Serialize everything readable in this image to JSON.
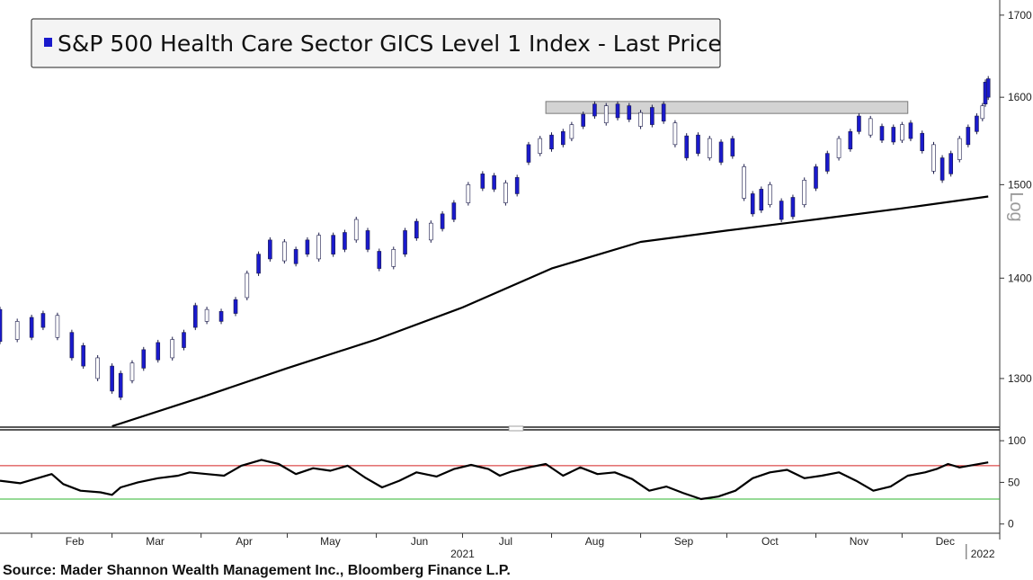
{
  "source": "Source: Mader Shannon Wealth Management Inc., Bloomberg Finance L.P.",
  "chart_data": [
    {
      "type": "candlestick",
      "title": "",
      "legend": [
        {
          "label": "S&P 500 Health Care Sector GICS Level 1 Index - Last Price",
          "color": "#1a1acc"
        }
      ],
      "scale": "log",
      "scale_label": "Log",
      "ylim": [
        1255,
        1710
      ],
      "yticks": [
        1300,
        1400,
        1500,
        1600,
        1700
      ],
      "xlim": [
        "2021-01-21",
        "2022-01-04"
      ],
      "x_month_ticks": [
        {
          "date": "2021-02-01",
          "label": "Feb"
        },
        {
          "date": "2021-03-01",
          "label": "Mar"
        },
        {
          "date": "2021-04-01",
          "label": "Apr"
        },
        {
          "date": "2021-05-01",
          "label": "May"
        },
        {
          "date": "2021-06-01",
          "label": "Jun"
        },
        {
          "date": "2021-07-01",
          "label": "Jul"
        },
        {
          "date": "2021-08-01",
          "label": "Aug"
        },
        {
          "date": "2021-09-01",
          "label": "Sep"
        },
        {
          "date": "2021-10-01",
          "label": "Oct"
        },
        {
          "date": "2021-11-01",
          "label": "Nov"
        },
        {
          "date": "2021-12-01",
          "label": "Dec"
        }
      ],
      "x_year_labels": [
        {
          "date": "2021-07-01",
          "label": "2021"
        },
        {
          "date": "2022-01-03",
          "label": "2022"
        }
      ],
      "resistance_zone": {
        "start": "2021-07-30",
        "end": "2021-12-03",
        "low": 1581,
        "high": 1595,
        "color": "#d3d3d3"
      },
      "series": [
        {
          "name": "Index",
          "style": "candles",
          "color": "#1a1acc",
          "points": [
            [
              "2021-01-21",
              1336,
              1368
            ],
            [
              "2021-01-27",
              1338,
              1356
            ],
            [
              "2021-02-01",
              1340,
              1360
            ],
            [
              "2021-02-05",
              1350,
              1364
            ],
            [
              "2021-02-10",
              1340,
              1362
            ],
            [
              "2021-02-15",
              1320,
              1345
            ],
            [
              "2021-02-19",
              1312,
              1332
            ],
            [
              "2021-02-24",
              1300,
              1320
            ],
            [
              "2021-03-01",
              1288,
              1312
            ],
            [
              "2021-03-04",
              1282,
              1305
            ],
            [
              "2021-03-08",
              1298,
              1315
            ],
            [
              "2021-03-12",
              1310,
              1328
            ],
            [
              "2021-03-17",
              1318,
              1335
            ],
            [
              "2021-03-22",
              1320,
              1338
            ],
            [
              "2021-03-26",
              1330,
              1345
            ],
            [
              "2021-03-30",
              1350,
              1372
            ],
            [
              "2021-04-03",
              1356,
              1368
            ],
            [
              "2021-04-08",
              1356,
              1366
            ],
            [
              "2021-04-13",
              1364,
              1378
            ],
            [
              "2021-04-17",
              1380,
              1405
            ],
            [
              "2021-04-21",
              1405,
              1425
            ],
            [
              "2021-04-25",
              1420,
              1440
            ],
            [
              "2021-04-30",
              1418,
              1438
            ],
            [
              "2021-05-04",
              1415,
              1430
            ],
            [
              "2021-05-08",
              1425,
              1440
            ],
            [
              "2021-05-12",
              1420,
              1445
            ],
            [
              "2021-05-17",
              1425,
              1445
            ],
            [
              "2021-05-21",
              1430,
              1448
            ],
            [
              "2021-05-25",
              1440,
              1462
            ],
            [
              "2021-05-29",
              1430,
              1450
            ],
            [
              "2021-06-02",
              1410,
              1428
            ],
            [
              "2021-06-07",
              1412,
              1430
            ],
            [
              "2021-06-11",
              1425,
              1450
            ],
            [
              "2021-06-15",
              1442,
              1460
            ],
            [
              "2021-06-20",
              1440,
              1458
            ],
            [
              "2021-06-24",
              1452,
              1468
            ],
            [
              "2021-06-28",
              1462,
              1480
            ],
            [
              "2021-07-03",
              1480,
              1500
            ],
            [
              "2021-07-08",
              1496,
              1512
            ],
            [
              "2021-07-12",
              1495,
              1510
            ],
            [
              "2021-07-16",
              1480,
              1502
            ],
            [
              "2021-07-20",
              1490,
              1508
            ],
            [
              "2021-07-24",
              1525,
              1545
            ],
            [
              "2021-07-28",
              1535,
              1552
            ],
            [
              "2021-08-01",
              1540,
              1556
            ],
            [
              "2021-08-05",
              1545,
              1560
            ],
            [
              "2021-08-08",
              1552,
              1568
            ],
            [
              "2021-08-12",
              1566,
              1580
            ],
            [
              "2021-08-16",
              1578,
              1592
            ],
            [
              "2021-08-20",
              1570,
              1590
            ],
            [
              "2021-08-24",
              1576,
              1592
            ],
            [
              "2021-08-28",
              1574,
              1590
            ],
            [
              "2021-09-01",
              1566,
              1582
            ],
            [
              "2021-09-05",
              1568,
              1588
            ],
            [
              "2021-09-09",
              1572,
              1592
            ],
            [
              "2021-09-13",
              1545,
              1570
            ],
            [
              "2021-09-17",
              1530,
              1555
            ],
            [
              "2021-09-21",
              1535,
              1556
            ],
            [
              "2021-09-25",
              1530,
              1552
            ],
            [
              "2021-09-29",
              1525,
              1548
            ],
            [
              "2021-10-03",
              1532,
              1552
            ],
            [
              "2021-10-07",
              1485,
              1520
            ],
            [
              "2021-10-10",
              1468,
              1490
            ],
            [
              "2021-10-13",
              1472,
              1495
            ],
            [
              "2021-10-16",
              1478,
              1500
            ],
            [
              "2021-10-20",
              1462,
              1482
            ],
            [
              "2021-10-24",
              1465,
              1486
            ],
            [
              "2021-10-28",
              1478,
              1505
            ],
            [
              "2021-11-01",
              1496,
              1520
            ],
            [
              "2021-11-05",
              1515,
              1535
            ],
            [
              "2021-11-09",
              1530,
              1552
            ],
            [
              "2021-11-13",
              1540,
              1560
            ],
            [
              "2021-11-16",
              1560,
              1578
            ],
            [
              "2021-11-20",
              1556,
              1575
            ],
            [
              "2021-11-24",
              1550,
              1566
            ],
            [
              "2021-11-28",
              1548,
              1565
            ],
            [
              "2021-12-01",
              1550,
              1568
            ],
            [
              "2021-12-04",
              1552,
              1570
            ],
            [
              "2021-12-08",
              1538,
              1558
            ],
            [
              "2021-12-12",
              1515,
              1545
            ],
            [
              "2021-12-15",
              1505,
              1530
            ],
            [
              "2021-12-18",
              1512,
              1535
            ],
            [
              "2021-12-21",
              1528,
              1552
            ],
            [
              "2021-12-24",
              1545,
              1565
            ],
            [
              "2021-12-27",
              1560,
              1578
            ],
            [
              "2021-12-29",
              1575,
              1590
            ],
            [
              "2021-12-30",
              1592,
              1618
            ],
            [
              "2021-12-31",
              1600,
              1622
            ]
          ]
        },
        {
          "name": "Moving average",
          "style": "line",
          "color": "#000000",
          "points": [
            [
              "2021-03-01",
              1255
            ],
            [
              "2021-04-01",
              1282
            ],
            [
              "2021-05-01",
              1310
            ],
            [
              "2021-06-01",
              1338
            ],
            [
              "2021-07-01",
              1370
            ],
            [
              "2021-08-01",
              1410
            ],
            [
              "2021-09-01",
              1438
            ],
            [
              "2021-10-01",
              1450
            ],
            [
              "2021-11-01",
              1462
            ],
            [
              "2021-12-01",
              1474
            ],
            [
              "2021-12-31",
              1487
            ]
          ]
        }
      ]
    },
    {
      "type": "line",
      "title": "",
      "ylim": [
        -10,
        112
      ],
      "yticks": [
        0,
        50,
        100
      ],
      "reference_lines": [
        {
          "value": 70,
          "color": "#d42020"
        },
        {
          "value": 30,
          "color": "#2fb52f"
        }
      ],
      "series": [
        {
          "name": "Oscillator",
          "color": "#000000",
          "points": [
            [
              "2021-01-21",
              52
            ],
            [
              "2021-01-28",
              49
            ],
            [
              "2021-02-04",
              56
            ],
            [
              "2021-02-08",
              60
            ],
            [
              "2021-02-12",
              48
            ],
            [
              "2021-02-18",
              40
            ],
            [
              "2021-02-25",
              38
            ],
            [
              "2021-03-01",
              35
            ],
            [
              "2021-03-04",
              44
            ],
            [
              "2021-03-10",
              50
            ],
            [
              "2021-03-17",
              55
            ],
            [
              "2021-03-24",
              58
            ],
            [
              "2021-03-28",
              62
            ],
            [
              "2021-04-03",
              60
            ],
            [
              "2021-04-09",
              58
            ],
            [
              "2021-04-15",
              70
            ],
            [
              "2021-04-22",
              77
            ],
            [
              "2021-04-28",
              72
            ],
            [
              "2021-05-04",
              60
            ],
            [
              "2021-05-10",
              67
            ],
            [
              "2021-05-16",
              64
            ],
            [
              "2021-05-22",
              70
            ],
            [
              "2021-05-28",
              56
            ],
            [
              "2021-06-03",
              44
            ],
            [
              "2021-06-09",
              52
            ],
            [
              "2021-06-15",
              62
            ],
            [
              "2021-06-22",
              57
            ],
            [
              "2021-06-28",
              66
            ],
            [
              "2021-07-04",
              71
            ],
            [
              "2021-07-10",
              66
            ],
            [
              "2021-07-14",
              58
            ],
            [
              "2021-07-18",
              63
            ],
            [
              "2021-07-24",
              68
            ],
            [
              "2021-07-30",
              72
            ],
            [
              "2021-08-05",
              58
            ],
            [
              "2021-08-11",
              68
            ],
            [
              "2021-08-17",
              60
            ],
            [
              "2021-08-23",
              62
            ],
            [
              "2021-08-29",
              54
            ],
            [
              "2021-09-04",
              40
            ],
            [
              "2021-09-10",
              45
            ],
            [
              "2021-09-16",
              37
            ],
            [
              "2021-09-22",
              30
            ],
            [
              "2021-09-28",
              33
            ],
            [
              "2021-10-04",
              40
            ],
            [
              "2021-10-10",
              55
            ],
            [
              "2021-10-16",
              62
            ],
            [
              "2021-10-22",
              65
            ],
            [
              "2021-10-28",
              55
            ],
            [
              "2021-11-03",
              58
            ],
            [
              "2021-11-09",
              62
            ],
            [
              "2021-11-15",
              52
            ],
            [
              "2021-11-21",
              40
            ],
            [
              "2021-11-27",
              45
            ],
            [
              "2021-12-03",
              58
            ],
            [
              "2021-12-09",
              62
            ],
            [
              "2021-12-13",
              66
            ],
            [
              "2021-12-17",
              72
            ],
            [
              "2021-12-21",
              68
            ],
            [
              "2021-12-31",
              74
            ]
          ]
        }
      ]
    }
  ]
}
